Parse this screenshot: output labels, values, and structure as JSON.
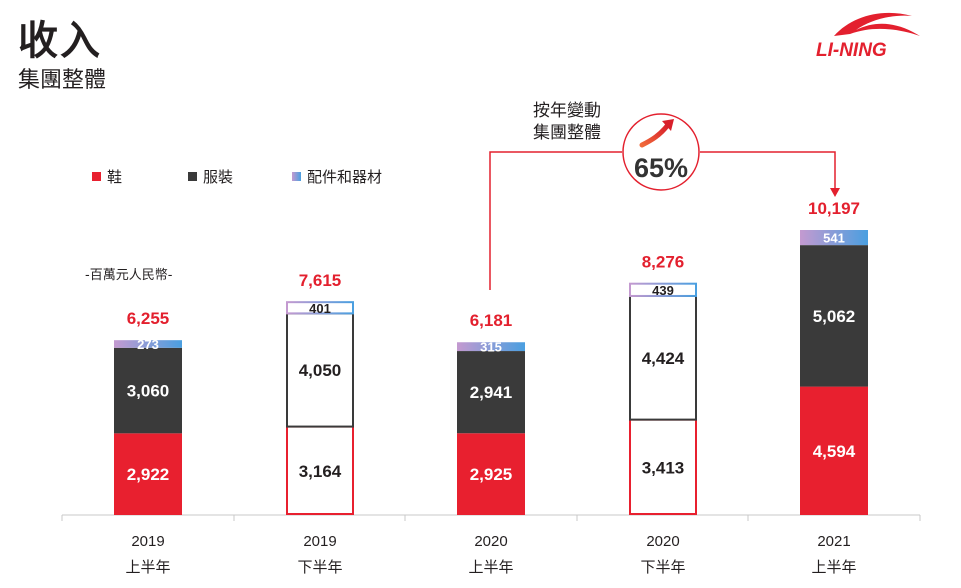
{
  "header": {
    "title": "收入",
    "subtitle": "集團整體"
  },
  "brand": {
    "logo_text": "LI-NING",
    "color": "#e3202e"
  },
  "colors": {
    "shoes": "#e8202f",
    "apparel": "#3a3a3a",
    "accessories_a": "#b89ad0",
    "accessories_b": "#4a9fe0",
    "total_label": "#e3202e",
    "axis": "#c8c8c8"
  },
  "legend": [
    {
      "label": "鞋",
      "color": "#e8202f"
    },
    {
      "label": "服裝",
      "color": "#3a3a3a"
    },
    {
      "label": "配件和器材",
      "color": "#8b8fd8"
    }
  ],
  "unit_label": "-百萬元人民幣-",
  "yoy": {
    "label_line1": "按年變動",
    "label_line2": "集團整體",
    "value": "65%"
  },
  "chart_data": {
    "type": "bar",
    "stacked": true,
    "title": "收入",
    "subtitle": "集團整體",
    "unit": "百萬元人民幣",
    "categories": [
      {
        "year": "2019",
        "half": "上半年"
      },
      {
        "year": "2019",
        "half": "下半年"
      },
      {
        "year": "2020",
        "half": "上半年"
      },
      {
        "year": "2020",
        "half": "下半年"
      },
      {
        "year": "2021",
        "half": "上半年"
      }
    ],
    "series": [
      {
        "name": "鞋",
        "values": [
          2922,
          3164,
          2925,
          3413,
          4594
        ]
      },
      {
        "name": "服裝",
        "values": [
          3060,
          4050,
          2941,
          4424,
          5062
        ]
      },
      {
        "name": "配件和器材",
        "values": [
          273,
          401,
          315,
          439,
          541
        ]
      }
    ],
    "value_labels": {
      "鞋": [
        "2,922",
        "3,164",
        "2,925",
        "3,413",
        "4,594"
      ],
      "服裝": [
        "3,060",
        "4,050",
        "2,941",
        "4,424",
        "5,062"
      ],
      "配件和器材": [
        "273",
        "401",
        "315",
        "439",
        "541"
      ]
    },
    "totals": [
      6255,
      7615,
      6181,
      8276,
      10197
    ],
    "total_labels": [
      "6,255",
      "7,615",
      "6,181",
      "8,276",
      "10,197"
    ],
    "hollow_bars": [
      false,
      true,
      false,
      true,
      false
    ],
    "ylim": [
      0,
      10197
    ]
  }
}
